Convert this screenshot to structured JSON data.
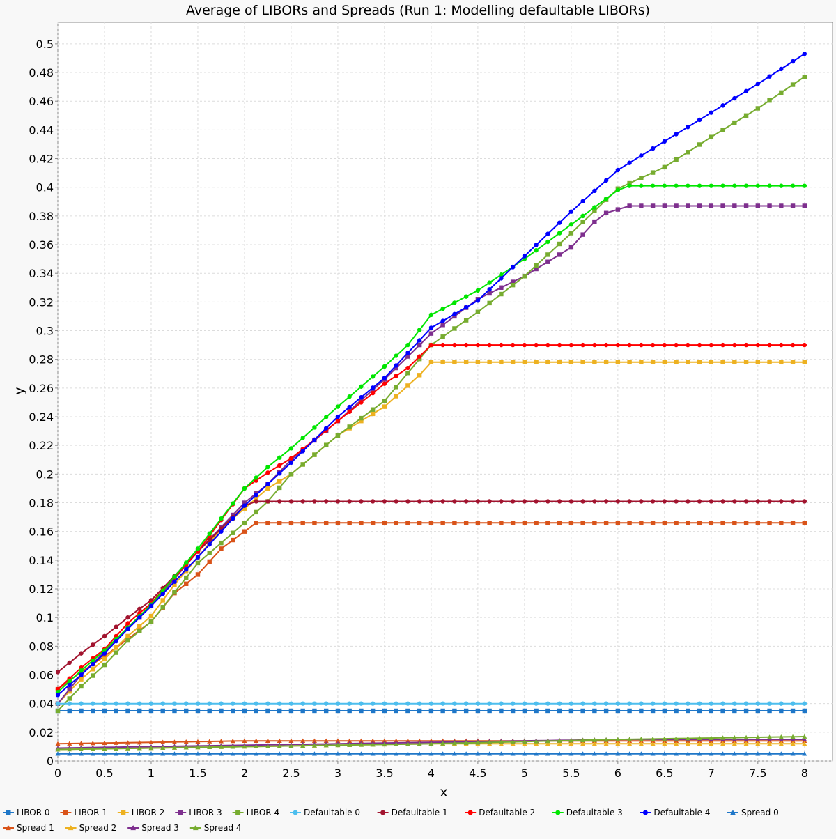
{
  "chart_data": {
    "type": "line",
    "title": "Average of LIBORs and Spreads (Run 1: Modelling defaultable LIBORs)",
    "xlabel": "x",
    "ylabel": "y",
    "xlim": [
      0,
      8.3
    ],
    "ylim": [
      0,
      0.515
    ],
    "x_ticks": [
      0,
      0.5,
      1,
      1.5,
      2,
      2.5,
      3,
      3.5,
      4,
      4.5,
      5,
      5.5,
      6,
      6.5,
      7,
      7.5,
      8
    ],
    "x_tick_labels": [
      "0",
      "0.5",
      "1",
      "1.5",
      "2",
      "2.5",
      "3",
      "3.5",
      "4",
      "4.5",
      "5",
      "5.5",
      "6",
      "6.5",
      "7",
      "7.5",
      "8"
    ],
    "y_ticks": [
      0,
      0.02,
      0.04,
      0.06,
      0.08,
      0.1,
      0.12,
      0.14,
      0.16,
      0.18,
      0.2,
      0.22,
      0.24,
      0.26,
      0.28,
      0.3,
      0.32,
      0.34,
      0.36,
      0.38,
      0.4,
      0.42,
      0.44,
      0.46,
      0.48,
      0.5
    ],
    "y_tick_labels": [
      "0",
      "0.02",
      "0.04",
      "0.06",
      "0.08",
      "0.1",
      "0.12",
      "0.14",
      "0.16",
      "0.18",
      "0.2",
      "0.22",
      "0.24",
      "0.26",
      "0.28",
      "0.3",
      "0.32",
      "0.34",
      "0.36",
      "0.38",
      "0.4",
      "0.42",
      "0.44",
      "0.46",
      "0.48",
      "0.5"
    ],
    "grid": true,
    "legend_position": "bottom",
    "x_step": 0.125,
    "series": [
      {
        "name": "LIBOR 0",
        "color": "#1f77c8",
        "marker": "square",
        "kind": "flat",
        "points": [
          [
            0,
            0.035
          ],
          [
            8,
            0.035
          ]
        ]
      },
      {
        "name": "LIBOR 1",
        "color": "#d95319",
        "marker": "square",
        "kind": "pw",
        "points": [
          [
            0,
            0.05
          ],
          [
            0.25,
            0.062
          ],
          [
            0.5,
            0.073
          ],
          [
            0.75,
            0.085
          ],
          [
            1,
            0.097
          ],
          [
            1.25,
            0.117
          ],
          [
            1.5,
            0.13
          ],
          [
            1.75,
            0.148
          ],
          [
            2,
            0.16
          ],
          [
            2.125,
            0.166
          ],
          [
            8,
            0.166
          ]
        ]
      },
      {
        "name": "LIBOR 2",
        "color": "#edb120",
        "marker": "square",
        "kind": "pw",
        "points": [
          [
            0,
            0.04
          ],
          [
            0.25,
            0.057
          ],
          [
            0.5,
            0.071
          ],
          [
            0.75,
            0.087
          ],
          [
            1,
            0.101
          ],
          [
            1.25,
            0.123
          ],
          [
            1.5,
            0.142
          ],
          [
            1.75,
            0.162
          ],
          [
            2,
            0.176
          ],
          [
            2.25,
            0.19
          ],
          [
            2.5,
            0.2
          ],
          [
            3,
            0.227
          ],
          [
            3.5,
            0.247
          ],
          [
            3.875,
            0.269
          ],
          [
            4,
            0.278
          ],
          [
            8,
            0.278
          ]
        ]
      },
      {
        "name": "LIBOR 3",
        "color": "#7e2f8e",
        "marker": "square",
        "kind": "pw",
        "points": [
          [
            0,
            0.04
          ],
          [
            0.25,
            0.06
          ],
          [
            0.5,
            0.076
          ],
          [
            0.75,
            0.092
          ],
          [
            1,
            0.108
          ],
          [
            1.5,
            0.146
          ],
          [
            2,
            0.18
          ],
          [
            2.25,
            0.193
          ],
          [
            2.5,
            0.21
          ],
          [
            3,
            0.237
          ],
          [
            3.5,
            0.266
          ],
          [
            4,
            0.298
          ],
          [
            4.5,
            0.322
          ],
          [
            5,
            0.338
          ],
          [
            5.5,
            0.358
          ],
          [
            5.75,
            0.376
          ],
          [
            5.875,
            0.382
          ],
          [
            6.125,
            0.387
          ],
          [
            8,
            0.387
          ]
        ]
      },
      {
        "name": "LIBOR 4",
        "color": "#77ac30",
        "marker": "square",
        "kind": "pw",
        "points": [
          [
            0,
            0.035
          ],
          [
            0.25,
            0.052
          ],
          [
            0.5,
            0.067
          ],
          [
            0.75,
            0.084
          ],
          [
            1,
            0.097
          ],
          [
            1.5,
            0.138
          ],
          [
            2,
            0.166
          ],
          [
            2.25,
            0.181
          ],
          [
            2.5,
            0.2
          ],
          [
            3,
            0.227
          ],
          [
            3.5,
            0.251
          ],
          [
            4,
            0.29
          ],
          [
            4.5,
            0.313
          ],
          [
            5,
            0.338
          ],
          [
            5.5,
            0.368
          ],
          [
            6,
            0.399
          ],
          [
            6.5,
            0.414
          ],
          [
            7,
            0.435
          ],
          [
            7.5,
            0.455
          ],
          [
            8,
            0.477
          ]
        ]
      },
      {
        "name": "Defaultable 0",
        "color": "#4dbeee",
        "marker": "circle",
        "kind": "flat",
        "points": [
          [
            0,
            0.04
          ],
          [
            8,
            0.04
          ]
        ]
      },
      {
        "name": "Defaultable 1",
        "color": "#a2142f",
        "marker": "circle",
        "kind": "pw",
        "points": [
          [
            0,
            0.062
          ],
          [
            0.25,
            0.075
          ],
          [
            0.5,
            0.087
          ],
          [
            0.75,
            0.1
          ],
          [
            1,
            0.112
          ],
          [
            1.5,
            0.146
          ],
          [
            2,
            0.178
          ],
          [
            2.125,
            0.181
          ],
          [
            8,
            0.181
          ]
        ]
      },
      {
        "name": "Defaultable 2",
        "color": "#ff0000",
        "marker": "circle",
        "kind": "pw",
        "points": [
          [
            0,
            0.05
          ],
          [
            0.25,
            0.065
          ],
          [
            0.5,
            0.078
          ],
          [
            0.75,
            0.096
          ],
          [
            1,
            0.11
          ],
          [
            1.5,
            0.146
          ],
          [
            2,
            0.19
          ],
          [
            2.25,
            0.201
          ],
          [
            2.5,
            0.211
          ],
          [
            3,
            0.237
          ],
          [
            3.5,
            0.263
          ],
          [
            3.75,
            0.274
          ],
          [
            4,
            0.29
          ],
          [
            8,
            0.29
          ]
        ]
      },
      {
        "name": "Defaultable 3",
        "color": "#00e600",
        "marker": "circle",
        "kind": "pw",
        "points": [
          [
            0,
            0.048
          ],
          [
            0.25,
            0.063
          ],
          [
            0.5,
            0.077
          ],
          [
            0.75,
            0.093
          ],
          [
            1,
            0.109
          ],
          [
            1.5,
            0.148
          ],
          [
            2,
            0.19
          ],
          [
            2.25,
            0.205
          ],
          [
            2.5,
            0.218
          ],
          [
            3,
            0.247
          ],
          [
            3.5,
            0.275
          ],
          [
            3.75,
            0.29
          ],
          [
            4,
            0.311
          ],
          [
            4.5,
            0.328
          ],
          [
            5,
            0.35
          ],
          [
            5.5,
            0.374
          ],
          [
            6,
            0.398
          ],
          [
            6.125,
            0.401
          ],
          [
            8,
            0.401
          ]
        ]
      },
      {
        "name": "Defaultable 4",
        "color": "#0000ff",
        "marker": "circle",
        "kind": "pw",
        "points": [
          [
            0,
            0.046
          ],
          [
            0.25,
            0.06
          ],
          [
            0.5,
            0.075
          ],
          [
            0.75,
            0.092
          ],
          [
            1,
            0.108
          ],
          [
            1.5,
            0.142
          ],
          [
            2,
            0.178
          ],
          [
            2.5,
            0.208
          ],
          [
            3,
            0.24
          ],
          [
            3.5,
            0.267
          ],
          [
            4,
            0.302
          ],
          [
            4.5,
            0.321
          ],
          [
            5,
            0.352
          ],
          [
            5.5,
            0.383
          ],
          [
            6,
            0.412
          ],
          [
            6.5,
            0.432
          ],
          [
            7,
            0.452
          ],
          [
            7.5,
            0.472
          ],
          [
            8,
            0.493
          ]
        ]
      },
      {
        "name": "Spread 0",
        "color": "#1f77c8",
        "marker": "triangle",
        "kind": "flat",
        "points": [
          [
            0,
            0.005
          ],
          [
            8,
            0.005
          ]
        ]
      },
      {
        "name": "Spread 1",
        "color": "#d95319",
        "marker": "triangle",
        "kind": "pw",
        "points": [
          [
            0,
            0.012
          ],
          [
            1,
            0.013
          ],
          [
            2,
            0.014
          ],
          [
            8,
            0.014
          ]
        ]
      },
      {
        "name": "Spread 2",
        "color": "#edb120",
        "marker": "triangle",
        "kind": "pw",
        "points": [
          [
            0,
            0.008
          ],
          [
            2,
            0.01
          ],
          [
            4,
            0.012
          ],
          [
            8,
            0.012
          ]
        ]
      },
      {
        "name": "Spread 3",
        "color": "#7e2f8e",
        "marker": "triangle",
        "kind": "pw",
        "points": [
          [
            0,
            0.009
          ],
          [
            2,
            0.011
          ],
          [
            4,
            0.013
          ],
          [
            6,
            0.015
          ],
          [
            8,
            0.015
          ]
        ]
      },
      {
        "name": "Spread 4",
        "color": "#77ac30",
        "marker": "triangle",
        "kind": "pw",
        "points": [
          [
            0,
            0.008
          ],
          [
            2,
            0.01
          ],
          [
            4,
            0.012
          ],
          [
            6,
            0.015
          ],
          [
            8,
            0.017
          ]
        ]
      }
    ]
  }
}
